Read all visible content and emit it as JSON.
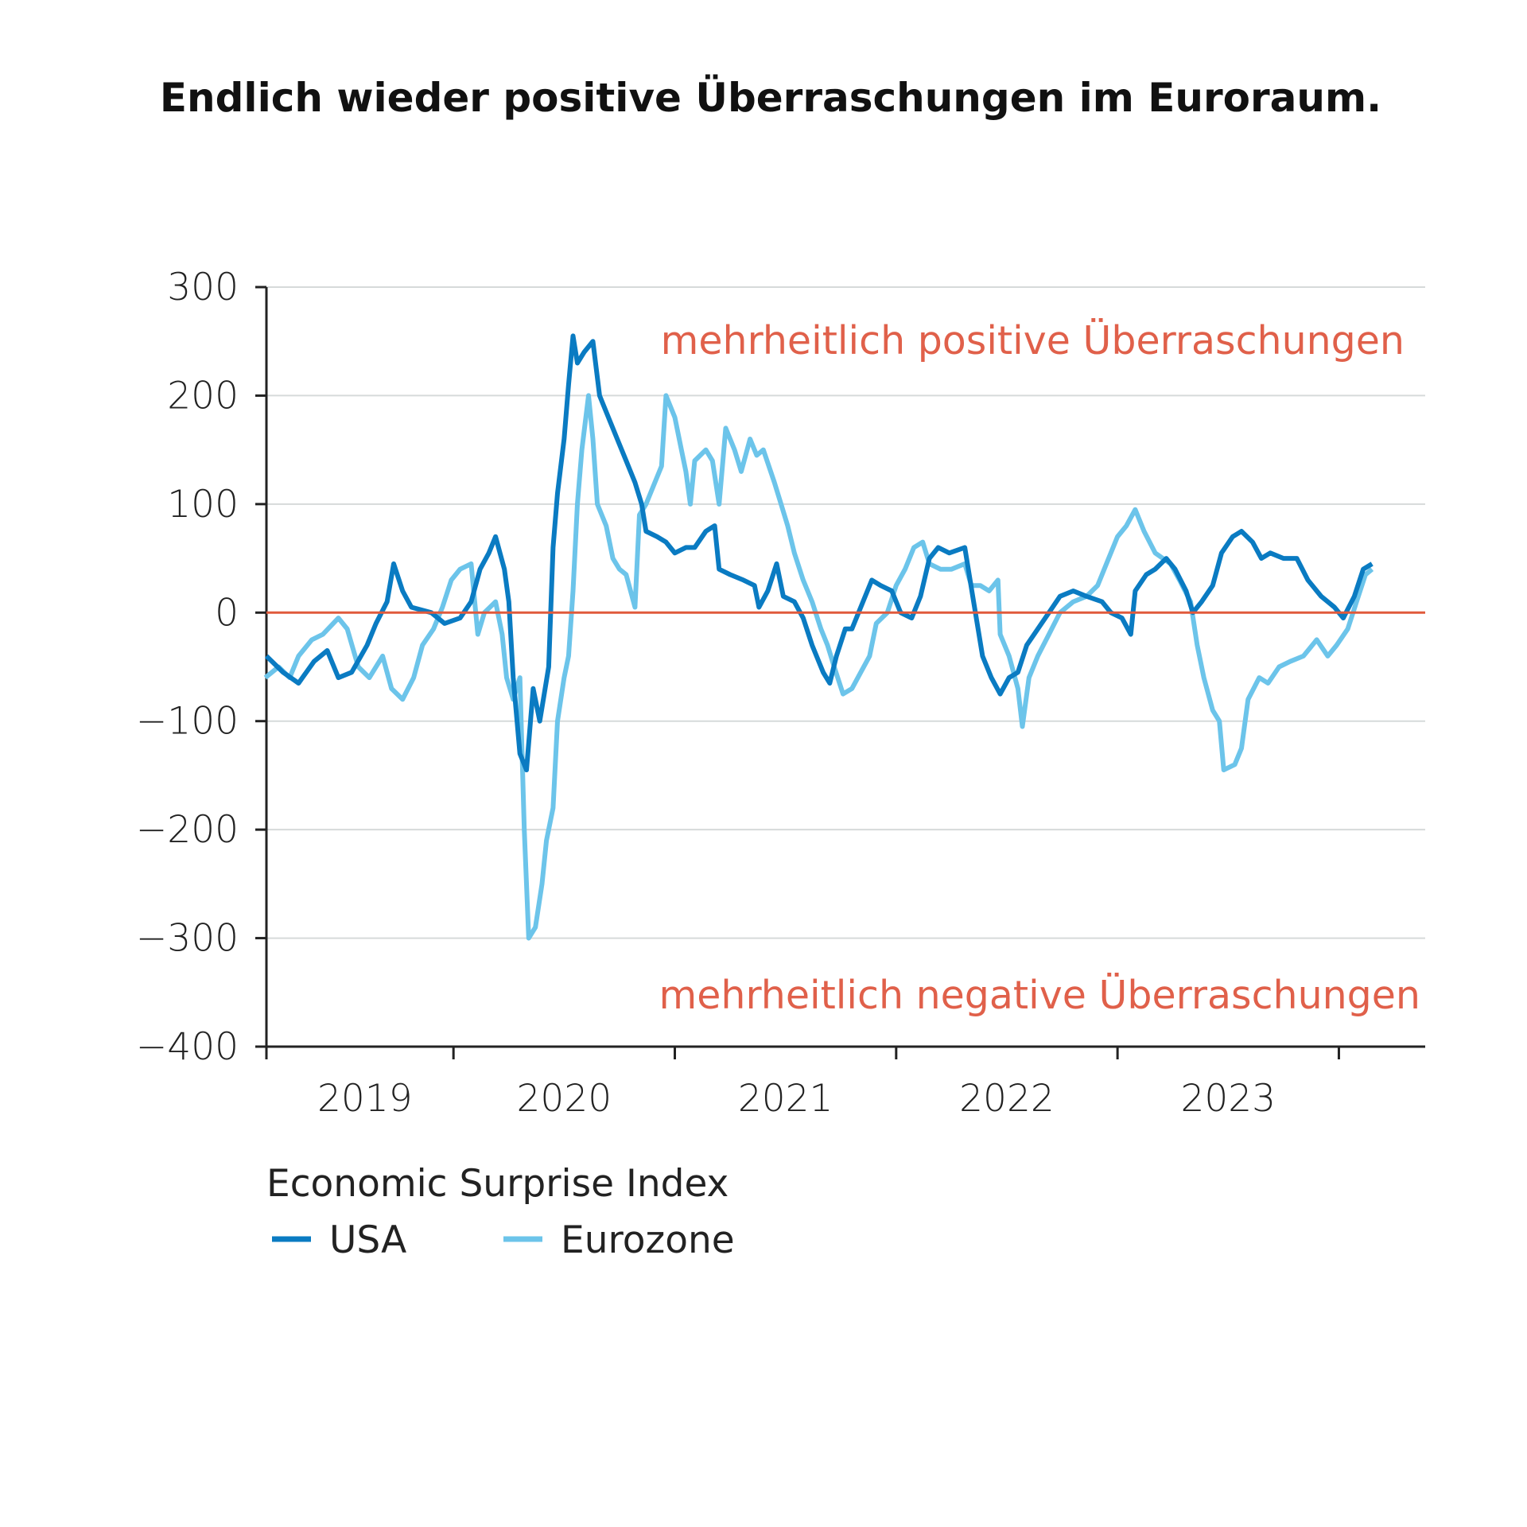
{
  "chart_data": {
    "type": "line",
    "title": "Endlich wieder positive Überraschungen im Euroraum.",
    "xlabel": "",
    "ylabel": "",
    "ylim": [
      -400,
      300
    ],
    "xlim": [
      2019.155,
      2024.39
    ],
    "yticks": [
      300,
      200,
      100,
      0,
      -100,
      -200,
      -300,
      -400
    ],
    "ytick_labels": [
      "300",
      "200",
      "100",
      "0",
      "−100",
      "−200",
      "−300",
      "−400"
    ],
    "xticks": [
      2020,
      2021,
      2022,
      2023,
      2024
    ],
    "xtick_labels": [
      {
        "label": "2019",
        "center": 2019.6
      },
      {
        "label": "2020",
        "center": 2020.5
      },
      {
        "label": "2021",
        "center": 2021.5
      },
      {
        "label": "2022",
        "center": 2022.5
      },
      {
        "label": "2023",
        "center": 2023.5
      }
    ],
    "grid": true,
    "reference_line": {
      "value": 0,
      "color": "#e05a3c"
    },
    "annotations": {
      "positive": "mehrheitlich positive Überraschungen",
      "negative": "mehrheitlich negative Überraschungen"
    },
    "legend": {
      "title": "Economic Surprise Index",
      "placement": "bottom-left"
    },
    "series": [
      {
        "name": "USA",
        "color": "#0a7bc2",
        "x": [
          2019.155,
          2019.23,
          2019.3,
          2019.37,
          2019.43,
          2019.48,
          2019.54,
          2019.61,
          2019.65,
          2019.7,
          2019.73,
          2019.77,
          2019.81,
          2019.9,
          2019.96,
          2020.03,
          2020.08,
          2020.12,
          2020.16,
          2020.19,
          2020.23,
          2020.25,
          2020.27,
          2020.3,
          2020.33,
          2020.36,
          2020.39,
          2020.43,
          2020.45,
          2020.47,
          2020.5,
          2020.52,
          2020.54,
          2020.56,
          2020.59,
          2020.63,
          2020.66,
          2020.69,
          2020.74,
          2020.78,
          2020.82,
          2020.85,
          2020.87,
          2020.92,
          2020.96,
          2021.0,
          2021.05,
          2021.09,
          2021.14,
          2021.18,
          2021.2,
          2021.25,
          2021.31,
          2021.36,
          2021.38,
          2021.42,
          2021.46,
          2021.49,
          2021.54,
          2021.58,
          2021.62,
          2021.67,
          2021.7,
          2021.73,
          2021.77,
          2021.8,
          2021.85,
          2021.89,
          2021.93,
          2021.98,
          2022.02,
          2022.07,
          2022.11,
          2022.15,
          2022.19,
          2022.24,
          2022.31,
          2022.35,
          2022.39,
          2022.43,
          2022.47,
          2022.51,
          2022.55,
          2022.59,
          2022.64,
          2022.69,
          2022.74,
          2022.8,
          2022.86,
          2022.93,
          2022.97,
          2023.02,
          2023.06,
          2023.08,
          2023.13,
          2023.17,
          2023.22,
          2023.26,
          2023.31,
          2023.34,
          2023.38,
          2023.43,
          2023.47,
          2023.52,
          2023.56,
          2023.61,
          2023.65,
          2023.69,
          2023.75,
          2023.81,
          2023.86,
          2023.92,
          2023.98,
          2024.02,
          2024.07,
          2024.11,
          2024.15
        ],
        "values": [
          -40,
          -55,
          -65,
          -45,
          -35,
          -60,
          -55,
          -30,
          -10,
          10,
          45,
          20,
          5,
          0,
          -10,
          -5,
          10,
          40,
          55,
          70,
          40,
          10,
          -60,
          -130,
          -145,
          -70,
          -100,
          -50,
          60,
          110,
          160,
          210,
          255,
          230,
          240,
          250,
          200,
          185,
          160,
          140,
          120,
          100,
          75,
          70,
          65,
          55,
          60,
          60,
          75,
          80,
          40,
          35,
          30,
          25,
          5,
          20,
          45,
          15,
          10,
          -5,
          -30,
          -55,
          -65,
          -40,
          -15,
          -15,
          10,
          30,
          25,
          20,
          0,
          -5,
          15,
          50,
          60,
          55,
          60,
          10,
          -40,
          -60,
          -75,
          -60,
          -55,
          -30,
          -15,
          0,
          15,
          20,
          15,
          10,
          0,
          -5,
          -20,
          20,
          35,
          40,
          50,
          40,
          20,
          0,
          10,
          25,
          55,
          70,
          75,
          65,
          50,
          55,
          50,
          50,
          30,
          15,
          5,
          -5,
          15,
          40,
          45
        ]
      },
      {
        "name": "Eurozone",
        "color": "#6cc4ea",
        "x": [
          2019.15,
          2019.21,
          2019.26,
          2019.3,
          2019.36,
          2019.41,
          2019.48,
          2019.52,
          2019.57,
          2019.62,
          2019.68,
          2019.72,
          2019.77,
          2019.82,
          2019.86,
          2019.91,
          2019.95,
          2019.99,
          2020.03,
          2020.08,
          2020.11,
          2020.14,
          2020.19,
          2020.22,
          2020.24,
          2020.27,
          2020.3,
          2020.32,
          2020.34,
          2020.37,
          2020.4,
          2020.42,
          2020.45,
          2020.47,
          2020.5,
          2020.52,
          2020.54,
          2020.56,
          2020.58,
          2020.61,
          2020.63,
          2020.65,
          2020.69,
          2020.72,
          2020.75,
          2020.78,
          2020.82,
          2020.84,
          2020.87,
          2020.91,
          2020.94,
          2020.96,
          2021.0,
          2021.03,
          2021.05,
          2021.07,
          2021.09,
          2021.14,
          2021.17,
          2021.2,
          2021.23,
          2021.27,
          2021.3,
          2021.34,
          2021.37,
          2021.4,
          2021.45,
          2021.48,
          2021.51,
          2021.54,
          2021.58,
          2021.62,
          2021.66,
          2021.69,
          2021.72,
          2021.76,
          2021.8,
          2021.84,
          2021.88,
          2021.91,
          2021.96,
          2022.0,
          2022.04,
          2022.08,
          2022.12,
          2022.15,
          2022.2,
          2022.25,
          2022.31,
          2022.34,
          2022.38,
          2022.42,
          2022.46,
          2022.47,
          2022.51,
          2022.55,
          2022.57,
          2022.6,
          2022.64,
          2022.69,
          2022.74,
          2022.8,
          2022.86,
          2022.91,
          2022.95,
          2023.0,
          2023.04,
          2023.08,
          2023.12,
          2023.17,
          2023.24,
          2023.28,
          2023.33,
          2023.36,
          2023.39,
          2023.43,
          2023.46,
          2023.48,
          2023.53,
          2023.56,
          2023.59,
          2023.64,
          2023.68,
          2023.73,
          2023.78,
          2023.84,
          2023.9,
          2023.95,
          2023.99,
          2024.04,
          2024.08,
          2024.12,
          2024.15
        ],
        "values": [
          -60,
          -50,
          -60,
          -40,
          -25,
          -20,
          -5,
          -15,
          -50,
          -60,
          -40,
          -70,
          -80,
          -60,
          -30,
          -15,
          5,
          30,
          40,
          45,
          -20,
          0,
          10,
          -20,
          -60,
          -80,
          -60,
          -200,
          -300,
          -290,
          -250,
          -210,
          -180,
          -100,
          -60,
          -40,
          20,
          100,
          150,
          200,
          160,
          100,
          80,
          50,
          40,
          35,
          5,
          90,
          100,
          120,
          135,
          200,
          180,
          150,
          130,
          100,
          140,
          150,
          140,
          100,
          170,
          150,
          130,
          160,
          145,
          150,
          120,
          100,
          80,
          55,
          30,
          10,
          -15,
          -30,
          -50,
          -75,
          -70,
          -55,
          -40,
          -10,
          0,
          25,
          40,
          60,
          65,
          45,
          40,
          40,
          45,
          25,
          25,
          20,
          30,
          -20,
          -40,
          -70,
          -105,
          -60,
          -40,
          -20,
          0,
          10,
          15,
          25,
          45,
          70,
          80,
          95,
          75,
          55,
          45,
          30,
          10,
          -30,
          -60,
          -90,
          -100,
          -145,
          -140,
          -125,
          -80,
          -60,
          -65,
          -50,
          -45,
          -40,
          -25,
          -40,
          -30,
          -15,
          10,
          35,
          40
        ]
      }
    ]
  }
}
